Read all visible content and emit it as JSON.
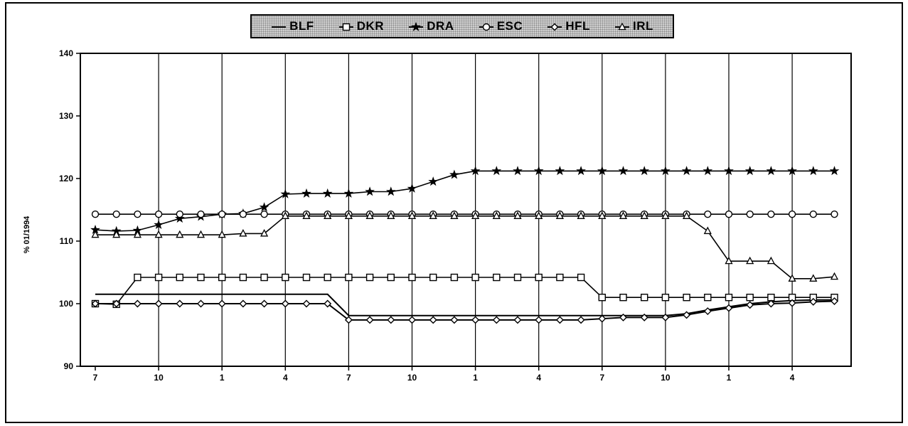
{
  "chart_data": {
    "type": "line",
    "title": "",
    "xlabel": "",
    "ylabel": "% 01/1994",
    "ylim": [
      90,
      140
    ],
    "yticks": [
      90,
      100,
      110,
      120,
      130,
      140
    ],
    "xtick_labels": [
      "7",
      "10",
      "1",
      "4",
      "7",
      "10",
      "1",
      "4",
      "7",
      "10",
      "1",
      "4"
    ],
    "grid": "vertical",
    "legend_position": "top-center",
    "x": [
      0,
      1,
      2,
      3,
      4,
      5,
      6,
      7,
      8,
      9,
      10,
      11,
      12,
      13,
      14,
      15,
      16,
      17,
      18,
      19,
      20,
      21,
      22,
      23,
      24,
      25,
      26,
      27,
      28,
      29,
      30,
      31,
      32,
      33,
      34,
      35
    ],
    "series": [
      {
        "name": "BLF",
        "marker": "none",
        "values": [
          101.5,
          101.5,
          101.5,
          101.5,
          101.5,
          101.5,
          101.5,
          101.5,
          101.5,
          101.5,
          101.5,
          101.5,
          98.1,
          98.1,
          98.1,
          98.1,
          98.1,
          98.1,
          98.1,
          98.1,
          98.1,
          98.1,
          98.1,
          98.1,
          98.1,
          98.1,
          98.1,
          98.1,
          98.4,
          99.0,
          99.5,
          100.0,
          100.3,
          100.5,
          100.6,
          100.6
        ]
      },
      {
        "name": "DKR",
        "marker": "square",
        "values": [
          100.0,
          99.9,
          104.2,
          104.2,
          104.2,
          104.2,
          104.2,
          104.2,
          104.2,
          104.2,
          104.2,
          104.2,
          104.2,
          104.2,
          104.2,
          104.2,
          104.2,
          104.2,
          104.2,
          104.2,
          104.2,
          104.2,
          104.2,
          104.2,
          101.0,
          101.0,
          101.0,
          101.0,
          101.0,
          101.0,
          101.0,
          101.0,
          101.0,
          101.0,
          101.0,
          101.0
        ]
      },
      {
        "name": "DRA",
        "marker": "star",
        "values": [
          111.8,
          111.6,
          111.7,
          112.6,
          113.6,
          113.9,
          114.3,
          114.4,
          115.4,
          117.5,
          117.6,
          117.6,
          117.6,
          117.9,
          117.9,
          118.4,
          119.5,
          120.6,
          121.2,
          121.2,
          121.2,
          121.2,
          121.2,
          121.2,
          121.2,
          121.2,
          121.2,
          121.2,
          121.2,
          121.2,
          121.2,
          121.2,
          121.2,
          121.2,
          121.2,
          121.2
        ]
      },
      {
        "name": "ESC",
        "marker": "circle",
        "values": [
          114.3,
          114.3,
          114.3,
          114.3,
          114.3,
          114.3,
          114.3,
          114.3,
          114.3,
          114.3,
          114.3,
          114.3,
          114.3,
          114.3,
          114.3,
          114.3,
          114.3,
          114.3,
          114.3,
          114.3,
          114.3,
          114.3,
          114.3,
          114.3,
          114.3,
          114.3,
          114.3,
          114.3,
          114.3,
          114.3,
          114.3,
          114.3,
          114.3,
          114.3,
          114.3,
          114.3
        ]
      },
      {
        "name": "HFL",
        "marker": "diamond",
        "values": [
          100.0,
          100.0,
          100.0,
          100.0,
          100.0,
          100.0,
          100.0,
          100.0,
          100.0,
          100.0,
          100.0,
          100.0,
          97.4,
          97.4,
          97.4,
          97.4,
          97.4,
          97.4,
          97.4,
          97.4,
          97.4,
          97.4,
          97.4,
          97.4,
          97.6,
          97.8,
          97.8,
          97.8,
          98.2,
          98.8,
          99.3,
          99.8,
          100.0,
          100.1,
          100.3,
          100.4
        ]
      },
      {
        "name": "IRL",
        "marker": "triangle",
        "values": [
          111.0,
          111.0,
          111.0,
          111.0,
          111.0,
          111.0,
          111.0,
          111.2,
          111.2,
          114.0,
          114.0,
          114.0,
          114.0,
          114.0,
          114.0,
          114.0,
          114.0,
          114.0,
          114.0,
          114.0,
          114.0,
          114.0,
          114.0,
          114.0,
          114.0,
          114.0,
          114.0,
          114.0,
          114.0,
          111.6,
          106.8,
          106.8,
          106.8,
          104.0,
          104.0,
          104.3
        ]
      }
    ]
  }
}
